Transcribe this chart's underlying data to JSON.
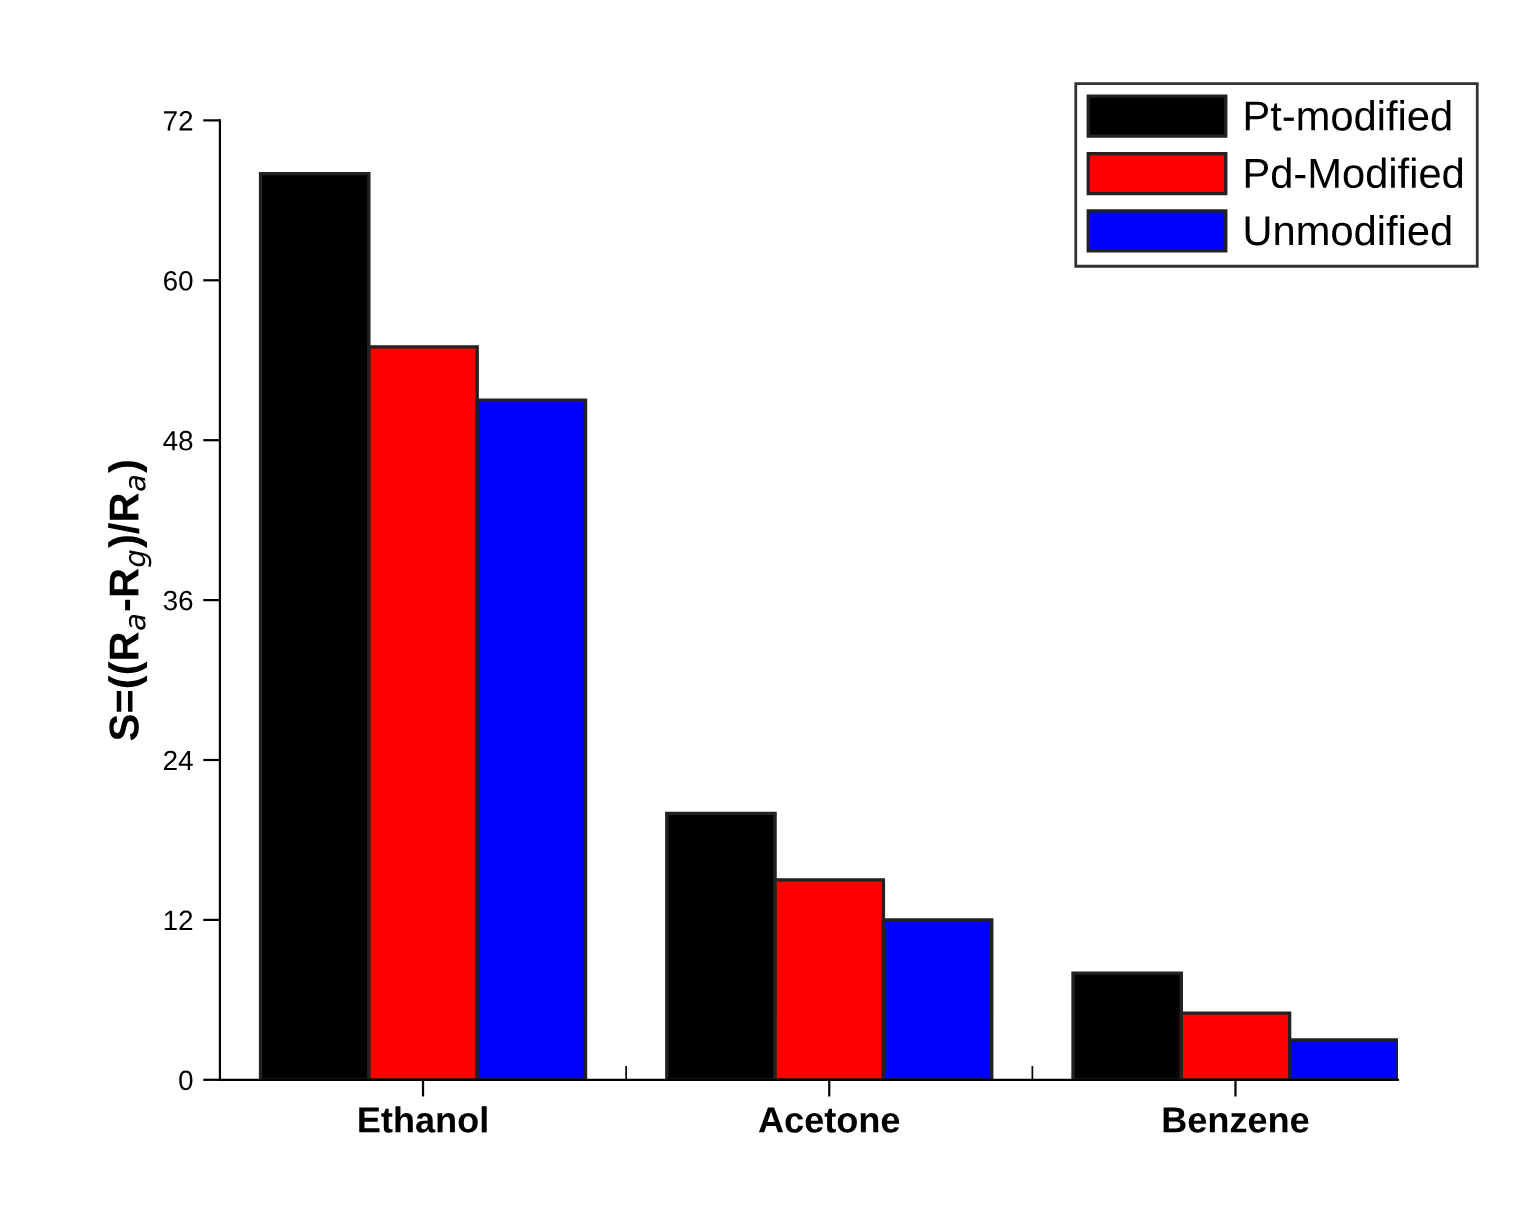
{
  "chart_data": {
    "type": "bar",
    "ylabel": "S=((R$_{a}$-R$_{g}$)/R$_{a}$)",
    "categories": [
      "Ethanol",
      "Acetone",
      "Benzene"
    ],
    "series": [
      {
        "name": "Pt-modified",
        "color": "#000000",
        "values": [
          68,
          20,
          8
        ]
      },
      {
        "name": "Pd-Modified",
        "color": "#ff0000",
        "values": [
          55,
          15,
          5
        ]
      },
      {
        "name": "Unmodified",
        "color": "#0000ff",
        "values": [
          51,
          12,
          3
        ]
      }
    ],
    "ylim": [
      0,
      72
    ],
    "yticks": [
      0,
      12,
      24,
      36,
      48,
      60,
      72
    ],
    "grid": false,
    "legend": "top right"
  }
}
